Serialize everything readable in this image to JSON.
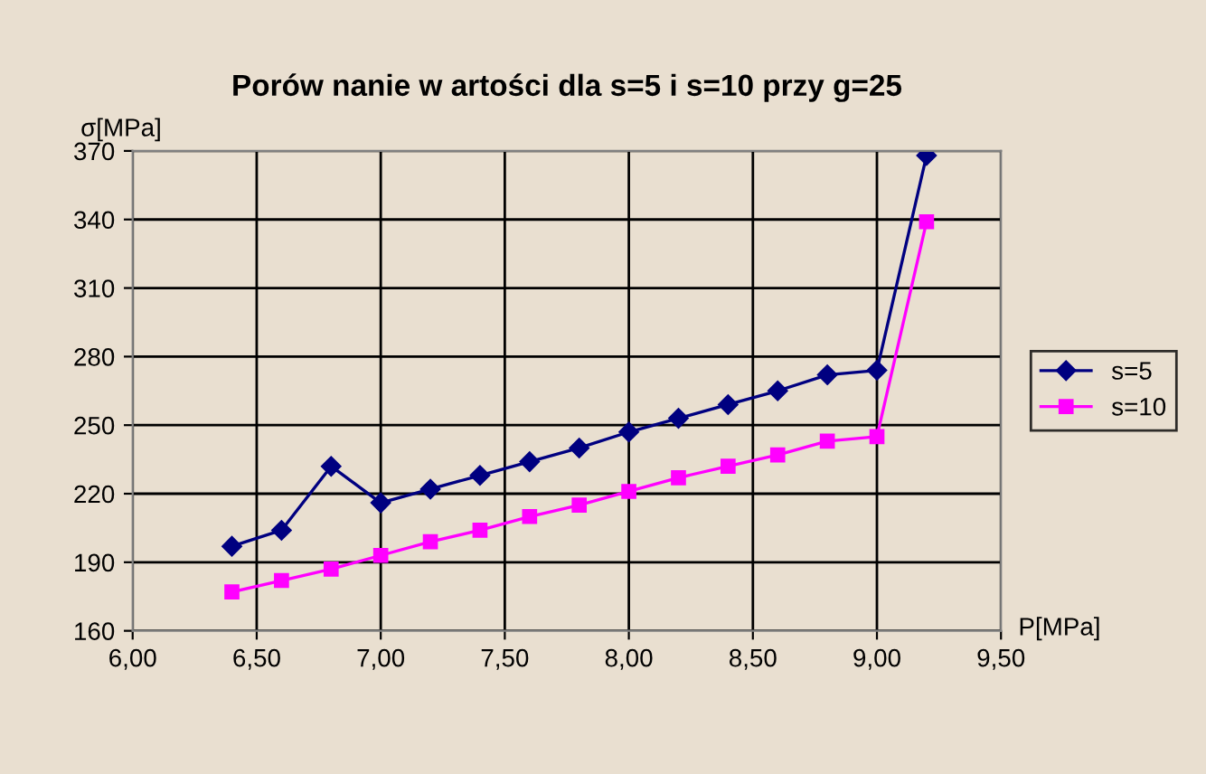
{
  "chart_data": {
    "type": "line",
    "title": "Porów nanie w artości dla s=5 i s=10 przy g=25",
    "xlabel": "P[MPa]",
    "ylabel": "σ[MPa]",
    "x": [
      6.4,
      6.6,
      6.8,
      7.0,
      7.2,
      7.4,
      7.6,
      7.8,
      8.0,
      8.2,
      8.4,
      8.6,
      8.8,
      9.0,
      9.2
    ],
    "series": [
      {
        "name": "s=5",
        "color": "#000080",
        "marker": "diamond",
        "values": [
          197,
          204,
          232,
          216,
          222,
          228,
          234,
          240,
          247,
          253,
          259,
          265,
          272,
          274,
          368
        ]
      },
      {
        "name": "s=10",
        "color": "#ff00ff",
        "marker": "square",
        "values": [
          177,
          182,
          187,
          193,
          199,
          204,
          210,
          215,
          221,
          227,
          232,
          237,
          243,
          245,
          339
        ]
      }
    ],
    "xlim": [
      6.0,
      9.5
    ],
    "xticks": [
      {
        "value": 6.0,
        "label": "6,00"
      },
      {
        "value": 6.5,
        "label": "6,50"
      },
      {
        "value": 7.0,
        "label": "7,00"
      },
      {
        "value": 7.5,
        "label": "7,50"
      },
      {
        "value": 8.0,
        "label": "8,00"
      },
      {
        "value": 8.5,
        "label": "8,50"
      },
      {
        "value": 9.0,
        "label": "9,00"
      },
      {
        "value": 9.5,
        "label": "9,50"
      }
    ],
    "ylim": [
      160,
      370
    ],
    "yticks": [
      160,
      190,
      220,
      250,
      280,
      310,
      340,
      370
    ],
    "grid": true,
    "legend": "right",
    "line_style": "solid"
  }
}
